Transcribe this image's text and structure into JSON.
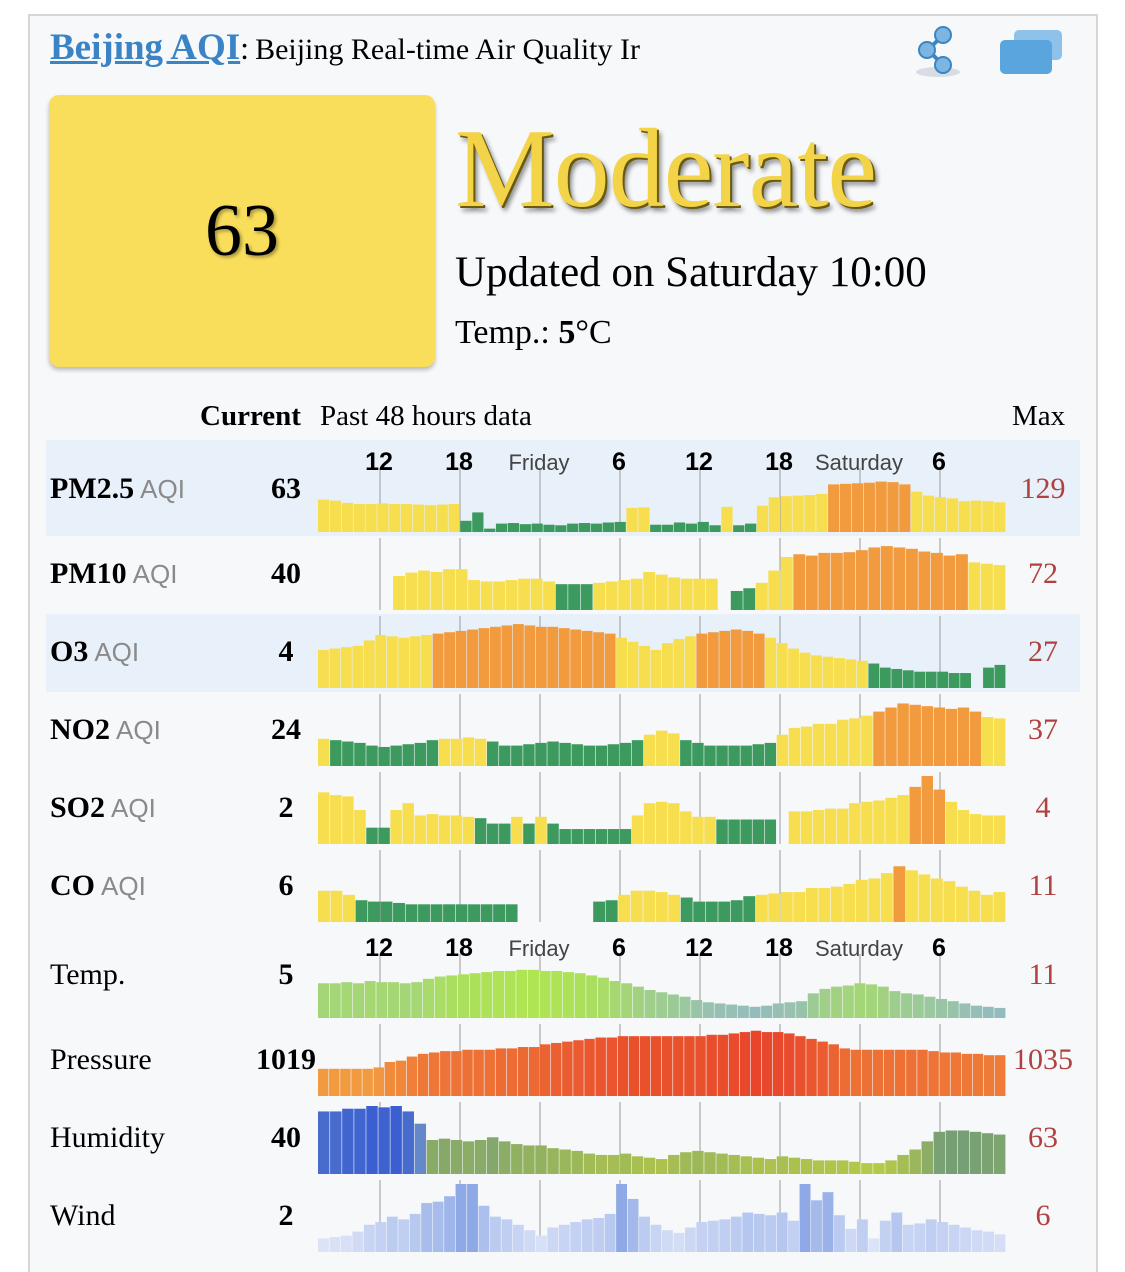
{
  "header": {
    "city_link": "Beijing AQI",
    "colon": ":",
    "subtitle": "Beijing Real-time Air Quality Ir"
  },
  "icons": {
    "share": "share-icon",
    "window": "windows-icon"
  },
  "aqi": {
    "value": "63",
    "level": "Moderate",
    "updated": "Updated on Saturday 10:00",
    "temp_label": "Temp.: ",
    "temp_value": "5",
    "temp_unit": "°C",
    "box_color": "#f8de5a"
  },
  "table_header": {
    "current": "Current",
    "past": "Past 48 hours data",
    "max": "Max"
  },
  "time_axis": {
    "ticks": [
      "12",
      "18",
      "Friday",
      "6",
      "12",
      "18",
      "Saturday",
      "6"
    ]
  },
  "rows": [
    {
      "id": "pm25",
      "name": "PM2.5",
      "unit": "AQI",
      "current": "63",
      "max": "129",
      "color_mode": "aqi",
      "values": [
        58,
        56,
        52,
        50,
        50,
        51,
        50,
        50,
        49,
        48,
        49,
        50,
        20,
        35,
        6,
        15,
        16,
        14,
        15,
        13,
        12,
        15,
        16,
        15,
        17,
        18,
        43,
        44,
        13,
        13,
        17,
        15,
        18,
        12,
        45,
        12,
        15,
        47,
        62,
        64,
        65,
        66,
        68,
        85,
        86,
        87,
        88,
        90,
        89,
        85,
        72,
        65,
        62,
        60,
        55,
        56,
        55,
        53
      ]
    },
    {
      "id": "pm10",
      "name": "PM10",
      "unit": "AQI",
      "current": "40",
      "max": "72",
      "color_mode": "aqi",
      "values": [
        null,
        null,
        null,
        null,
        null,
        null,
        50,
        55,
        58,
        56,
        60,
        60,
        44,
        42,
        42,
        44,
        46,
        46,
        42,
        38,
        38,
        38,
        40,
        42,
        44,
        46,
        56,
        52,
        48,
        46,
        46,
        46,
        null,
        28,
        32,
        40,
        58,
        78,
        82,
        80,
        84,
        84,
        85,
        88,
        92,
        94,
        92,
        90,
        86,
        84,
        80,
        82,
        70,
        68,
        66
      ]
    },
    {
      "id": "o3",
      "name": "O3",
      "unit": "AQI",
      "current": "4",
      "max": "27",
      "color_mode": "aqi",
      "values": [
        56,
        58,
        60,
        62,
        70,
        78,
        76,
        74,
        76,
        78,
        80,
        82,
        84,
        86,
        88,
        90,
        92,
        94,
        92,
        90,
        90,
        88,
        86,
        84,
        82,
        80,
        74,
        68,
        62,
        56,
        66,
        72,
        76,
        80,
        82,
        84,
        86,
        84,
        80,
        74,
        66,
        58,
        52,
        48,
        46,
        44,
        42,
        40,
        36,
        30,
        28,
        26,
        24,
        24,
        24,
        22,
        22,
        null,
        30,
        34
      ]
    },
    {
      "id": "no2",
      "name": "NO2",
      "unit": "AQI",
      "current": "24",
      "max": "37",
      "color_mode": "aqi",
      "values": [
        40,
        38,
        36,
        34,
        30,
        28,
        30,
        32,
        34,
        38,
        40,
        40,
        42,
        40,
        36,
        30,
        30,
        32,
        34,
        36,
        34,
        32,
        30,
        30,
        32,
        34,
        38,
        46,
        52,
        48,
        38,
        34,
        30,
        30,
        30,
        30,
        32,
        34,
        46,
        56,
        58,
        62,
        62,
        68,
        70,
        74,
        80,
        86,
        92,
        90,
        88,
        86,
        84,
        86,
        80,
        72,
        70
      ]
    },
    {
      "id": "so2",
      "name": "SO2",
      "unit": "AQI",
      "current": "2",
      "max": "4",
      "color_mode": "aqi",
      "values": [
        76,
        72,
        70,
        50,
        24,
        24,
        50,
        60,
        42,
        44,
        42,
        42,
        40,
        38,
        30,
        30,
        40,
        30,
        40,
        30,
        22,
        22,
        22,
        22,
        22,
        22,
        42,
        60,
        62,
        60,
        48,
        40,
        40,
        36,
        36,
        36,
        36,
        36,
        null,
        48,
        48,
        50,
        52,
        52,
        60,
        62,
        64,
        68,
        72,
        84,
        100,
        80,
        62,
        50,
        44,
        42,
        42
      ]
    },
    {
      "id": "co",
      "name": "CO",
      "unit": "AQI",
      "current": "6",
      "max": "11",
      "color_mode": "aqi",
      "values": [
        46,
        46,
        40,
        32,
        30,
        30,
        28,
        26,
        26,
        26,
        26,
        26,
        26,
        26,
        26,
        26,
        null,
        null,
        null,
        null,
        null,
        null,
        30,
        32,
        40,
        46,
        46,
        44,
        40,
        36,
        30,
        30,
        30,
        32,
        38,
        40,
        42,
        44,
        44,
        50,
        50,
        52,
        56,
        62,
        64,
        72,
        82,
        76,
        70,
        64,
        60,
        52,
        46,
        40,
        44
      ]
    },
    {
      "id": "temp",
      "name": "Temp.",
      "unit": "",
      "current": "5",
      "max": "11",
      "color_mode": "temp",
      "values": [
        62,
        62,
        64,
        62,
        66,
        64,
        64,
        62,
        64,
        70,
        74,
        76,
        78,
        80,
        82,
        84,
        84,
        86,
        86,
        84,
        84,
        82,
        80,
        76,
        72,
        66,
        62,
        56,
        50,
        46,
        42,
        38,
        32,
        28,
        26,
        24,
        22,
        20,
        22,
        26,
        28,
        30,
        44,
        52,
        56,
        58,
        62,
        60,
        56,
        48,
        44,
        42,
        38,
        34,
        30,
        26,
        22,
        20,
        18
      ]
    },
    {
      "id": "pressure",
      "name": "Pressure",
      "unit": "",
      "current": "1019",
      "max": "1035",
      "color_mode": "pressure",
      "values": [
        40,
        40,
        40,
        40,
        40,
        42,
        50,
        52,
        58,
        62,
        64,
        66,
        66,
        68,
        68,
        68,
        70,
        70,
        72,
        72,
        76,
        78,
        80,
        82,
        84,
        86,
        86,
        88,
        88,
        88,
        88,
        88,
        88,
        88,
        88,
        90,
        90,
        92,
        94,
        96,
        94,
        94,
        92,
        88,
        84,
        80,
        76,
        70,
        68,
        68,
        68,
        68,
        68,
        68,
        68,
        66,
        64,
        64,
        62,
        62,
        60,
        60
      ]
    },
    {
      "id": "humidity",
      "name": "Humidity",
      "unit": "",
      "current": "40",
      "max": "63",
      "color_mode": "humidity",
      "values": [
        92,
        92,
        96,
        96,
        100,
        98,
        100,
        92,
        74,
        50,
        52,
        50,
        48,
        50,
        54,
        48,
        44,
        42,
        42,
        38,
        36,
        34,
        30,
        28,
        28,
        30,
        26,
        24,
        22,
        28,
        32,
        34,
        32,
        30,
        28,
        26,
        24,
        22,
        26,
        24,
        22,
        20,
        20,
        20,
        18,
        16,
        16,
        20,
        28,
        36,
        48,
        62,
        64,
        64,
        62,
        60,
        58
      ]
    },
    {
      "id": "wind",
      "name": "Wind",
      "unit": "",
      "current": "2",
      "max": "6",
      "color_mode": "wind",
      "values": [
        20,
        22,
        24,
        30,
        40,
        44,
        52,
        48,
        56,
        72,
        74,
        82,
        100,
        100,
        68,
        52,
        48,
        40,
        32,
        24,
        36,
        40,
        44,
        48,
        50,
        56,
        100,
        78,
        52,
        40,
        32,
        28,
        36,
        44,
        46,
        48,
        52,
        58,
        56,
        54,
        58,
        46,
        100,
        76,
        88,
        54,
        34,
        48,
        20,
        46,
        58,
        40,
        42,
        48,
        44,
        40,
        36,
        32,
        30,
        26
      ]
    }
  ],
  "colors": {
    "aqi_good": "#3c9a5f",
    "aqi_moderate": "#f7de4f",
    "aqi_usg": "#f19a3e",
    "link": "#3a84c5",
    "max_text": "#b0413e",
    "level_text": "#f3d348"
  },
  "chart_data": {
    "type": "bar",
    "title": "Past 48 hours data",
    "x_ticks": [
      "12",
      "18",
      "Friday",
      "6",
      "12",
      "18",
      "Saturday",
      "6"
    ],
    "series_ref": "rows"
  }
}
